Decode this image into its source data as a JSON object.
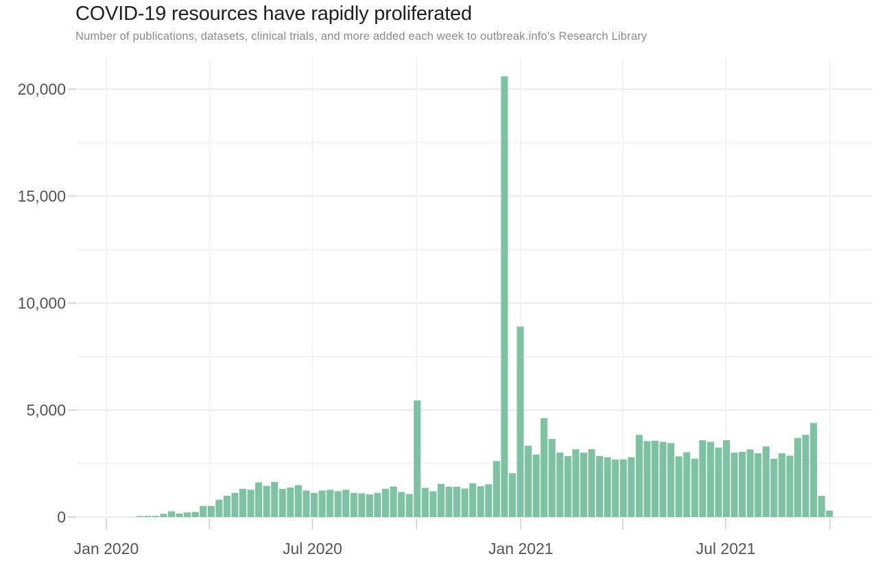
{
  "header": {
    "title": "COVID-19 resources have rapidly proliferated",
    "subtitle": "Number of publications, datasets, clinical trials, and more added each week to outbreak.info's Research Library"
  },
  "chart_data": {
    "type": "bar",
    "title": "COVID-19 resources have rapidly proliferated",
    "subtitle": "Number of publications, datasets, clinical trials, and more added each week to outbreak.info's Research Library",
    "xlabel": "",
    "ylabel": "",
    "ylim": [
      0,
      21250
    ],
    "grid": "on",
    "legend": "none",
    "bar_color": "#7ec2a4",
    "y_major_ticks": [
      0,
      5000,
      10000,
      15000,
      20000
    ],
    "y_tick_labels": [
      "0",
      "5,000",
      "10,000",
      "15,000",
      "20,000"
    ],
    "y_minor_step": 2500,
    "x_tick_labels": [
      "Jan 2020",
      "Jul 2020",
      "Jan 2021",
      "Jul 2021"
    ],
    "x_tick_dates": [
      "2020-01-01",
      "2020-07-01",
      "2021-01-01",
      "2021-07-01"
    ],
    "x_grid_dates": [
      "2020-01-01",
      "2020-04-01",
      "2020-07-01",
      "2020-10-01",
      "2021-01-01",
      "2021-04-01",
      "2021-07-01",
      "2021-10-01"
    ],
    "x_unit": "week_of (approx, estimated from axis)",
    "x": [
      "2020-01-27",
      "2020-02-03",
      "2020-02-10",
      "2020-02-17",
      "2020-02-24",
      "2020-03-02",
      "2020-03-09",
      "2020-03-16",
      "2020-03-23",
      "2020-03-30",
      "2020-04-06",
      "2020-04-13",
      "2020-04-20",
      "2020-04-27",
      "2020-05-04",
      "2020-05-11",
      "2020-05-18",
      "2020-05-25",
      "2020-06-01",
      "2020-06-08",
      "2020-06-15",
      "2020-06-22",
      "2020-06-29",
      "2020-07-06",
      "2020-07-13",
      "2020-07-20",
      "2020-07-27",
      "2020-08-03",
      "2020-08-10",
      "2020-08-17",
      "2020-08-24",
      "2020-08-31",
      "2020-09-07",
      "2020-09-14",
      "2020-09-21",
      "2020-09-28",
      "2020-10-05",
      "2020-10-12",
      "2020-10-19",
      "2020-10-26",
      "2020-11-02",
      "2020-11-09",
      "2020-11-16",
      "2020-11-23",
      "2020-11-30",
      "2020-12-07",
      "2020-12-14",
      "2020-12-21",
      "2020-12-28",
      "2021-01-04",
      "2021-01-11",
      "2021-01-18",
      "2021-01-25",
      "2021-02-01",
      "2021-02-08",
      "2021-02-15",
      "2021-02-22",
      "2021-03-01",
      "2021-03-08",
      "2021-03-15",
      "2021-03-22",
      "2021-03-29",
      "2021-04-05",
      "2021-04-12",
      "2021-04-19",
      "2021-04-26",
      "2021-05-03",
      "2021-05-10",
      "2021-05-17",
      "2021-05-24",
      "2021-05-31",
      "2021-06-07",
      "2021-06-14",
      "2021-06-21",
      "2021-06-28",
      "2021-07-05",
      "2021-07-12",
      "2021-07-19",
      "2021-07-26",
      "2021-08-02",
      "2021-08-09",
      "2021-08-16",
      "2021-08-23",
      "2021-08-30",
      "2021-09-06",
      "2021-09-13",
      "2021-09-20",
      "2021-09-27"
    ],
    "values": [
      45,
      55,
      55,
      150,
      270,
      160,
      215,
      240,
      520,
      520,
      810,
      995,
      1130,
      1320,
      1275,
      1620,
      1460,
      1640,
      1320,
      1380,
      1490,
      1240,
      1130,
      1240,
      1275,
      1210,
      1275,
      1130,
      1110,
      1060,
      1130,
      1320,
      1430,
      1170,
      1080,
      5450,
      1365,
      1200,
      1550,
      1420,
      1420,
      1330,
      1580,
      1440,
      1530,
      2620,
      20600,
      2050,
      8900,
      3330,
      2920,
      4620,
      3650,
      3010,
      2850,
      3170,
      3010,
      3170,
      2850,
      2790,
      2690,
      2700,
      2800,
      3840,
      3550,
      3570,
      3515,
      3460,
      2840,
      3030,
      2730,
      3590,
      3515,
      3250,
      3590,
      3010,
      3050,
      3160,
      2980,
      3300,
      2730,
      2980,
      2870,
      3700,
      3840,
      4400,
      990,
      300
    ]
  },
  "colors": {
    "bar": "#7ec2a4",
    "title_text": "#1f1f1f",
    "subtitle_text": "#8a8a8a",
    "axis_text": "#545454",
    "grid_major": "#e4e4e4",
    "grid_minor": "#efefef",
    "tick": "#cfcfcf"
  }
}
